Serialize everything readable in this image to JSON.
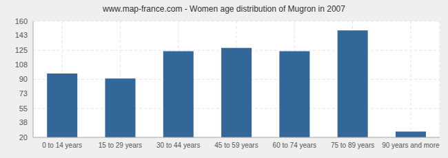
{
  "chart_data": {
    "type": "bar",
    "title": "www.map-france.com - Women age distribution of Mugron in 2007",
    "categories": [
      "0 to 14 years",
      "15 to 29 years",
      "30 to 44 years",
      "45 to 59 years",
      "60 to 74 years",
      "75 to 89 years",
      "90 years and more"
    ],
    "values": [
      97,
      91,
      124,
      128,
      124,
      149,
      27
    ],
    "color": "#336699",
    "ylim": [
      20,
      160
    ],
    "yticks": [
      20,
      38,
      55,
      73,
      90,
      108,
      125,
      143,
      160
    ],
    "grid": true
  }
}
